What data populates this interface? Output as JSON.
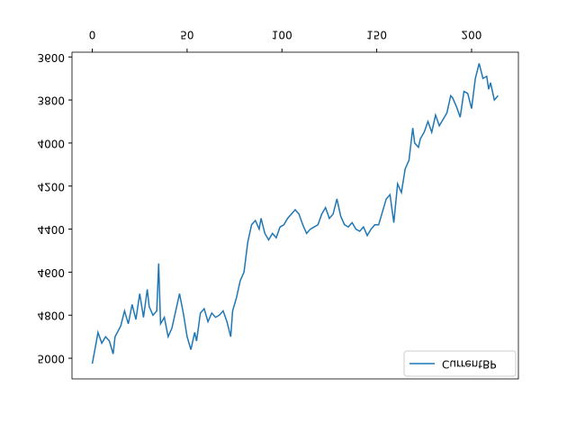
{
  "chart_data": {
    "type": "line",
    "x": [
      0,
      2,
      3,
      5,
      7,
      9,
      11,
      12,
      15,
      17,
      19,
      21,
      23,
      25,
      27,
      29,
      30,
      32,
      34,
      35,
      36,
      38,
      40,
      42,
      44,
      46,
      48,
      50,
      52,
      54,
      55,
      57,
      59,
      61,
      63,
      65,
      67,
      69,
      71,
      73,
      74,
      76,
      78,
      80,
      82,
      84,
      86,
      88,
      89,
      91,
      93,
      95,
      97,
      99,
      101,
      103,
      105,
      107,
      109,
      111,
      113,
      115,
      117,
      119,
      121,
      123,
      125,
      127,
      129,
      131,
      133,
      135,
      137,
      139,
      141,
      143,
      145,
      147,
      149,
      151,
      153,
      155,
      157,
      159,
      161,
      163,
      165,
      167,
      169,
      170,
      172,
      173,
      175,
      177,
      179,
      181,
      183,
      185,
      187,
      189,
      190,
      192,
      194,
      196,
      198,
      200,
      202,
      204,
      206,
      208,
      209,
      210,
      212,
      214
    ],
    "series": [
      {
        "name": "CurrentBP",
        "color": "#1f77b4",
        "values": [
          5025,
          4930,
          4880,
          4930,
          4900,
          4920,
          4980,
          4900,
          4850,
          4780,
          4840,
          4750,
          4820,
          4700,
          4810,
          4680,
          4760,
          4800,
          4780,
          4560,
          4840,
          4810,
          4900,
          4860,
          4780,
          4700,
          4790,
          4900,
          4960,
          4880,
          4920,
          4790,
          4770,
          4830,
          4790,
          4810,
          4800,
          4780,
          4830,
          4900,
          4780,
          4720,
          4640,
          4600,
          4460,
          4380,
          4360,
          4400,
          4350,
          4420,
          4450,
          4420,
          4440,
          4390,
          4380,
          4350,
          4330,
          4310,
          4330,
          4380,
          4420,
          4400,
          4390,
          4380,
          4330,
          4300,
          4350,
          4330,
          4260,
          4340,
          4380,
          4390,
          4370,
          4400,
          4410,
          4390,
          4430,
          4400,
          4380,
          4380,
          4320,
          4260,
          4240,
          4370,
          4190,
          4230,
          4120,
          4080,
          3930,
          4000,
          4020,
          3980,
          3950,
          3900,
          3950,
          3870,
          3920,
          3890,
          3860,
          3780,
          3790,
          3830,
          3880,
          3760,
          3770,
          3840,
          3700,
          3630,
          3700,
          3690,
          3750,
          3720,
          3800,
          3780
        ]
      }
    ],
    "xlim": [
      -10.7,
      224.7
    ],
    "xticks": [
      0,
      50,
      100,
      150,
      200
    ],
    "ylim": [
      3578,
      5096
    ],
    "yticks": [
      3600,
      3800,
      4000,
      4200,
      4400,
      4600,
      4800,
      5000
    ],
    "legend": "upper right",
    "flipped_vertically": true
  }
}
